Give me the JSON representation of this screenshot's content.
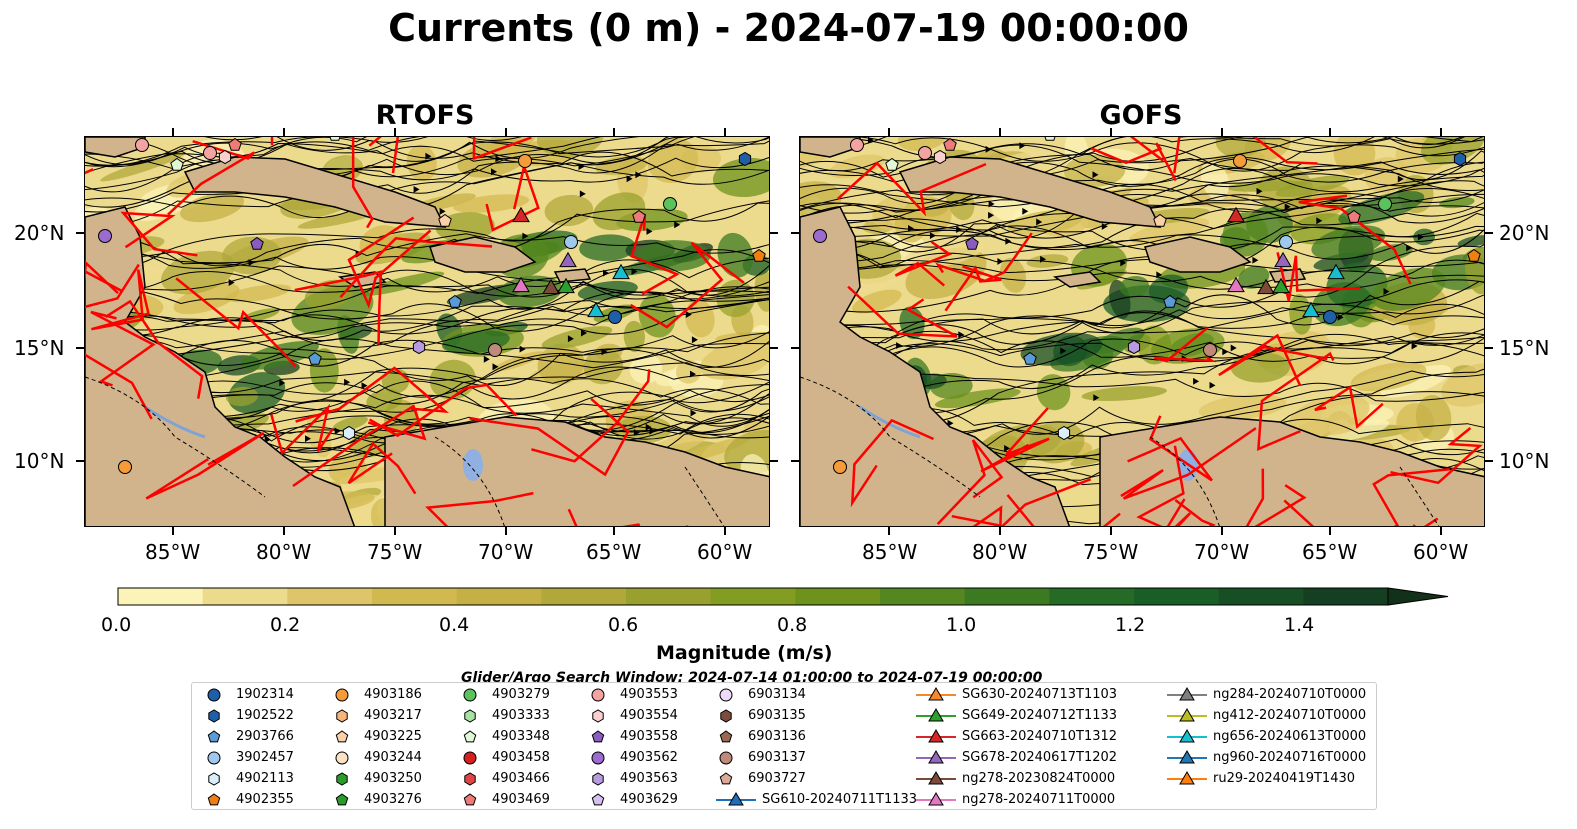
{
  "title": "Currents (0 m) - 2024-07-19 00:00:00",
  "panels": [
    {
      "title": "RTOFS"
    },
    {
      "title": "GOFS"
    }
  ],
  "axes": {
    "lon_ticks": [
      "85°W",
      "80°W",
      "75°W",
      "70°W",
      "65°W",
      "60°W"
    ],
    "lat_ticks": [
      "20°N",
      "15°N",
      "10°N"
    ]
  },
  "colors": {
    "land": "#d2b48c",
    "boundaries": "#ff0000",
    "streamlines": "#000000",
    "rivers": "#7fa3d6"
  },
  "colorbar": {
    "label": "Magnitude (m/s)",
    "ticks": [
      "0.0",
      "0.2",
      "0.4",
      "0.6",
      "0.8",
      "1.0",
      "1.2",
      "1.4"
    ],
    "range": [
      0,
      1.5
    ],
    "extend": "max",
    "colormap": [
      "#fbf3b8",
      "#eddb8d",
      "#dfc56a",
      "#d1b950",
      "#c4b045",
      "#b0a83b",
      "#98a12f",
      "#839c22",
      "#6e931d",
      "#54871f",
      "#3c7a22",
      "#256b26",
      "#1a5e27",
      "#174f25",
      "#143f20",
      "#13301a"
    ]
  },
  "search_window": "Glider/Argo Search Window: 2024-07-14 01:00:00 to 2024-07-19 00:00:00",
  "legend": [
    {
      "label": "1902314",
      "marker": "circle",
      "color": "#1f5fa8"
    },
    {
      "label": "1902522",
      "marker": "hexagon",
      "color": "#1f5fa8"
    },
    {
      "label": "2903766",
      "marker": "pentagon",
      "color": "#5b9bd5"
    },
    {
      "label": "3902457",
      "marker": "circle",
      "color": "#9ec9ec"
    },
    {
      "label": "4902113",
      "marker": "hexagon",
      "color": "#dbeefc"
    },
    {
      "label": "4902355",
      "marker": "pentagon",
      "color": "#f07f11"
    },
    {
      "label": "4903186",
      "marker": "circle",
      "color": "#f59b3a"
    },
    {
      "label": "4903217",
      "marker": "hexagon",
      "color": "#f8b57b"
    },
    {
      "label": "4903225",
      "marker": "pentagon",
      "color": "#fbd0a6"
    },
    {
      "label": "4903244",
      "marker": "circle",
      "color": "#fde3c6"
    },
    {
      "label": "4903250",
      "marker": "hexagon",
      "color": "#2a9a2a"
    },
    {
      "label": "4903276",
      "marker": "pentagon",
      "color": "#2a9a2a"
    },
    {
      "label": "4903279",
      "marker": "circle",
      "color": "#5cc25c"
    },
    {
      "label": "4903333",
      "marker": "hexagon",
      "color": "#a6e3a0"
    },
    {
      "label": "4903348",
      "marker": "pentagon",
      "color": "#e0f8d6"
    },
    {
      "label": "4903458",
      "marker": "circle",
      "color": "#d62020"
    },
    {
      "label": "4903466",
      "marker": "hexagon",
      "color": "#e04545"
    },
    {
      "label": "4903469",
      "marker": "pentagon",
      "color": "#ef7a7a"
    },
    {
      "label": "4903553",
      "marker": "circle",
      "color": "#f4a3a3"
    },
    {
      "label": "4903554",
      "marker": "hexagon",
      "color": "#f9cfcf"
    },
    {
      "label": "4903558",
      "marker": "pentagon",
      "color": "#8a5cc0"
    },
    {
      "label": "4903562",
      "marker": "circle",
      "color": "#9b6bd0"
    },
    {
      "label": "4903563",
      "marker": "hexagon",
      "color": "#b79ae0"
    },
    {
      "label": "4903629",
      "marker": "pentagon",
      "color": "#d4c1ef"
    },
    {
      "label": "6903134",
      "marker": "circle",
      "color": "#eed9f9"
    },
    {
      "label": "6903135",
      "marker": "hexagon",
      "color": "#7d4b3b"
    },
    {
      "label": "6903136",
      "marker": "pentagon",
      "color": "#9a6753"
    },
    {
      "label": "6903137",
      "marker": "circle",
      "color": "#c08a7a"
    },
    {
      "label": "6903727",
      "marker": "pentagon",
      "color": "#dca898"
    },
    {
      "label": "SG610-20240711T1133",
      "marker": "triangle",
      "color": "#1f6fb8"
    },
    {
      "label": "SG630-20240713T1103",
      "marker": "triangle",
      "color": "#f5892a"
    },
    {
      "label": "SG649-20240712T1133",
      "marker": "triangle",
      "color": "#2ca02c"
    },
    {
      "label": "SG663-20240710T1312",
      "marker": "triangle",
      "color": "#d62728"
    },
    {
      "label": "SG678-20240617T1202",
      "marker": "triangle",
      "color": "#9467bd"
    },
    {
      "label": "ng278-20230824T0000",
      "marker": "triangle",
      "color": "#7b4a3a"
    },
    {
      "label": "ng278-20240711T0000",
      "marker": "triangle",
      "color": "#e377c2"
    },
    {
      "label": "ng284-20240710T0000",
      "marker": "triangle",
      "color": "#7f7f7f"
    },
    {
      "label": "ng412-20240710T0000",
      "marker": "triangle",
      "color": "#bcbd22"
    },
    {
      "label": "ng656-20240613T0000",
      "marker": "triangle",
      "color": "#17becf"
    },
    {
      "label": "ng960-20240716T0000",
      "marker": "triangle",
      "color": "#1f77b4"
    },
    {
      "label": "ru29-20240419T1430",
      "marker": "triangle",
      "color": "#ff7f0e"
    }
  ]
}
